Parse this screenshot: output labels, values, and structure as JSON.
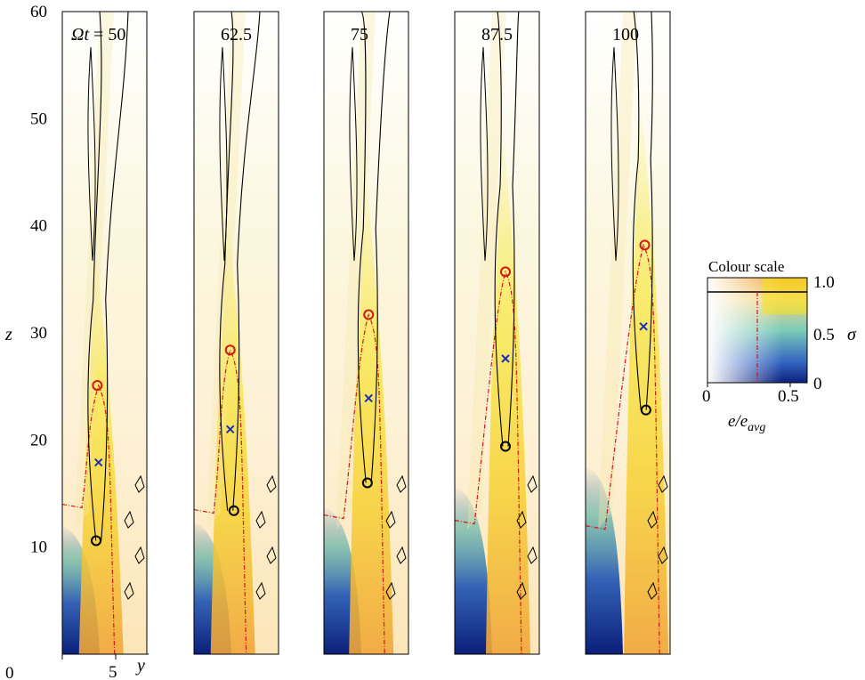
{
  "chart_data": {
    "type": "heatmap",
    "xlabel": "y",
    "ylabel": "z",
    "ylim": [
      0,
      60
    ],
    "xlim": [
      0,
      7
    ],
    "y_ticks": [
      "0",
      "10",
      "20",
      "30",
      "40",
      "50",
      "60"
    ],
    "x_tick_labels": [
      "0",
      "5"
    ],
    "panels": [
      {
        "label_prefix": "Ωt",
        "label_eq": " = ",
        "label_value": "50",
        "top_marker": {
          "y": 2.9,
          "z": 25.1
        },
        "cross_marker": {
          "y": 3.0,
          "z": 17.9
        },
        "bottom_marker": {
          "y": 2.8,
          "z": 10.6
        }
      },
      {
        "label_prefix": "",
        "label_eq": "",
        "label_value": "62.5",
        "top_marker": {
          "y": 3.0,
          "z": 28.4
        },
        "cross_marker": {
          "y": 3.0,
          "z": 21.0
        },
        "bottom_marker": {
          "y": 3.3,
          "z": 13.4
        }
      },
      {
        "label_prefix": "",
        "label_eq": "",
        "label_value": "75",
        "top_marker": {
          "y": 3.7,
          "z": 31.7
        },
        "cross_marker": {
          "y": 3.7,
          "z": 23.9
        },
        "bottom_marker": {
          "y": 3.6,
          "z": 16.0
        }
      },
      {
        "label_prefix": "",
        "label_eq": "",
        "label_value": "87.5",
        "top_marker": {
          "y": 4.2,
          "z": 35.7
        },
        "cross_marker": {
          "y": 4.2,
          "z": 27.6
        },
        "bottom_marker": {
          "y": 4.2,
          "z": 19.4
        }
      },
      {
        "label_prefix": "",
        "label_eq": "",
        "label_value": "100",
        "top_marker": {
          "y": 4.9,
          "z": 38.2
        },
        "cross_marker": {
          "y": 4.8,
          "z": 30.6
        },
        "bottom_marker": {
          "y": 5.0,
          "z": 22.8
        }
      }
    ],
    "colour_scale": {
      "title": "Colour scale",
      "xlabel_base": "e/e",
      "xlabel_sub": "avg",
      "x_ticks": [
        "0",
        "0.5"
      ],
      "y_ticks": [
        "0",
        "0.5",
        "1.0"
      ],
      "ylabel": "σ"
    },
    "colors": {
      "yellow": "#f6e416",
      "orange": "#f0a53a",
      "teal": "#3aa8a0",
      "blue": "#1d53b4",
      "navy": "#0b1f7a",
      "contour": "#000000",
      "dashed": "#d01818",
      "top_marker": "#d01818",
      "cross_marker": "#1c2fb8",
      "bottom_marker": "#000000"
    }
  }
}
